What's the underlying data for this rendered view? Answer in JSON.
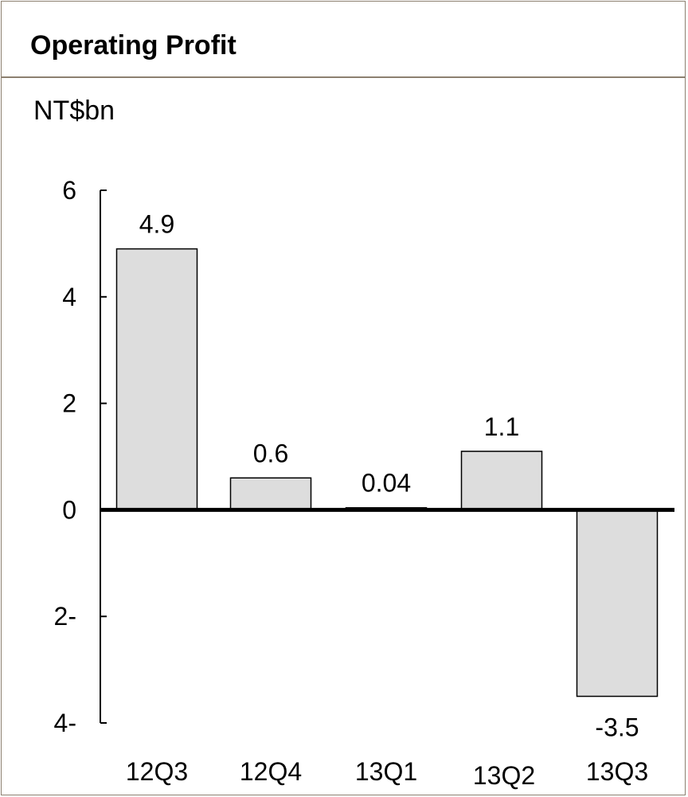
{
  "colors": {
    "bar_fill": "#dddddd",
    "bar_stroke": "#000000",
    "frame": "#8c8070"
  },
  "chart_data": {
    "type": "bar",
    "title": "Operating Profit",
    "ylabel": "NT$bn",
    "categories": [
      "12Q3",
      "12Q4",
      "13Q1",
      "13Q2",
      "13Q3"
    ],
    "values": [
      4.9,
      0.6,
      0.04,
      1.1,
      -3.5
    ],
    "value_labels": [
      "4.9",
      "0.6",
      "0.04",
      "1.1",
      "-3.5"
    ],
    "ylim": [
      -4,
      6
    ],
    "yticks": [
      6,
      4,
      2,
      0,
      -2,
      -4
    ],
    "ytick_labels": [
      "6",
      "4",
      "2",
      "0",
      "2-",
      "4-"
    ],
    "grid": false,
    "legend": "none"
  }
}
